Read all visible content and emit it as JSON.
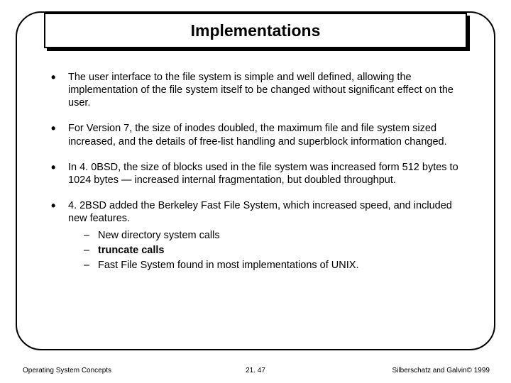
{
  "title": "Implementations",
  "bullets": [
    {
      "text": "The user interface to the file system is simple and well defined, allowing the implementation of the file system itself to be changed without significant effect on the user."
    },
    {
      "text": "For Version 7, the size of inodes doubled, the maximum file and file system sized increased, and the details of free-list handling and superblock information changed."
    },
    {
      "text": "In 4. 0BSD, the size of blocks used in the file system was increased form 512 bytes to 1024 bytes — increased internal fragmentation, but doubled throughput."
    },
    {
      "text": "4. 2BSD added the Berkeley Fast File System, which increased speed, and included new features.",
      "subs": [
        "New directory system calls",
        "truncate calls",
        "Fast File System found in most implementations of UNIX."
      ]
    }
  ],
  "footer": {
    "left": "Operating System Concepts",
    "center": "21. 47",
    "right": "Silberschatz and Galvin© 1999"
  },
  "style": {
    "slide_width": 720,
    "slide_height": 540,
    "frame_border_radius": 36,
    "title_fontsize": 23,
    "body_fontsize": 14.5,
    "footer_fontsize": 10,
    "text_color": "#000000",
    "background_color": "#ffffff"
  }
}
